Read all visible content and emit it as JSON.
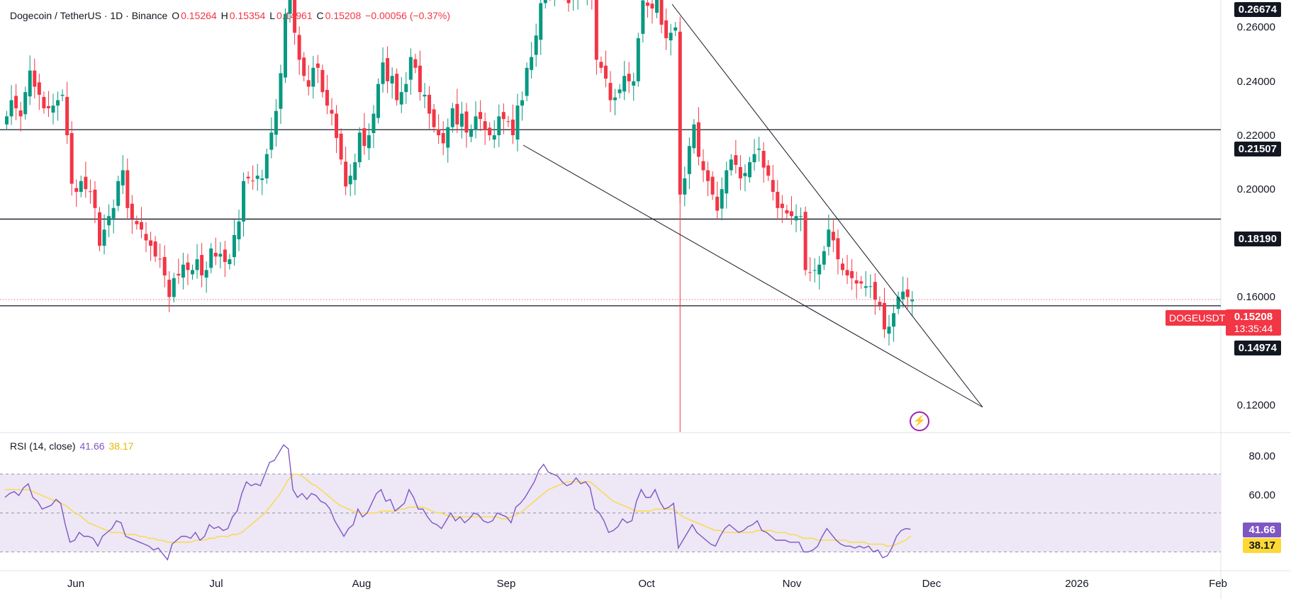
{
  "header": {
    "symbol": "Dogecoin / TetherUS · 1D · Binance",
    "o_label": "O",
    "o_val": "0.15264",
    "h_label": "H",
    "h_val": "0.15354",
    "l_label": "L",
    "l_val": "0.14961",
    "c_label": "C",
    "c_val": "0.15208",
    "change": "−0.00056 (−0.37%)"
  },
  "rsi_header": {
    "label": "RSI (14, close)",
    "rsi": "41.66",
    "ma": "38.17"
  },
  "price_axis": [
    "0.26000",
    "0.24000",
    "0.22000",
    "0.20000",
    "0.16000",
    "0.12000"
  ],
  "rsi_axis": [
    "80.00",
    "60.00"
  ],
  "level_labels": [
    "0.26674",
    "0.21507",
    "0.18190",
    "0.14974"
  ],
  "current": {
    "ticker": "DOGEUSDT",
    "price": "0.15208",
    "countdown": "13:35:44"
  },
  "rsi_values": {
    "rsi": "41.66",
    "ma": "38.17"
  },
  "time_axis": [
    "Jun",
    "Jul",
    "Aug",
    "Sep",
    "Oct",
    "Nov",
    "Dec",
    "2026",
    "Feb"
  ],
  "colors": {
    "up": "#089981",
    "down": "#f23645",
    "rsi": "#7e57c2",
    "rsi_ma": "#fdd835",
    "band": "#ede7f6"
  },
  "chart_data": {
    "type": "candlestick",
    "title": "Dogecoin / TetherUS · 1D · Binance",
    "ylim": [
      0.105,
      0.268
    ],
    "horizontal_levels": [
      0.26674,
      0.21507,
      0.1819,
      0.14974
    ],
    "last_price": 0.15208,
    "wedge_upper": [
      [
        "Oct 6",
        0.2667
      ],
      [
        "Dec 12",
        0.119
      ]
    ],
    "wedge_lower": [
      [
        "Sep 2",
        0.215
      ],
      [
        "Dec 12",
        0.119
      ]
    ],
    "close": [
      0.22,
      0.226,
      0.223,
      0.22,
      0.229,
      0.237,
      0.231,
      0.228,
      0.223,
      0.223,
      0.224,
      0.226,
      0.228,
      0.213,
      0.195,
      0.192,
      0.196,
      0.193,
      0.192,
      0.186,
      0.172,
      0.178,
      0.183,
      0.186,
      0.196,
      0.2,
      0.186,
      0.182,
      0.18,
      0.178,
      0.174,
      0.172,
      0.168,
      0.167,
      0.161,
      0.153,
      0.16,
      0.161,
      0.165,
      0.163,
      0.163,
      0.167,
      0.161,
      0.163,
      0.171,
      0.168,
      0.169,
      0.166,
      0.167,
      0.176,
      0.181,
      0.196,
      0.197,
      0.196,
      0.198,
      0.197,
      0.206,
      0.214,
      0.222,
      0.236,
      0.258,
      0.273,
      0.251,
      0.241,
      0.235,
      0.231,
      0.238,
      0.238,
      0.229,
      0.224,
      0.221,
      0.212,
      0.204,
      0.194,
      0.198,
      0.203,
      0.214,
      0.209,
      0.213,
      0.221,
      0.232,
      0.24,
      0.233,
      0.235,
      0.226,
      0.229,
      0.232,
      0.242,
      0.238,
      0.229,
      0.228,
      0.221,
      0.216,
      0.213,
      0.21,
      0.216,
      0.223,
      0.217,
      0.221,
      0.214,
      0.215,
      0.22,
      0.219,
      0.215,
      0.213,
      0.213,
      0.22,
      0.219,
      0.218,
      0.213,
      0.224,
      0.226,
      0.238,
      0.242,
      0.25,
      0.262,
      0.265,
      0.266,
      0.268,
      0.269,
      0.265,
      0.262,
      0.266,
      0.27,
      0.266,
      0.268,
      0.264,
      0.241,
      0.238,
      0.234,
      0.226,
      0.227,
      0.23,
      0.235,
      0.233,
      0.233,
      0.249,
      0.263,
      0.261,
      0.26,
      0.267,
      0.254,
      0.249,
      0.251,
      0.253,
      0.191,
      0.197,
      0.209,
      0.217,
      0.205,
      0.2,
      0.196,
      0.191,
      0.185,
      0.193,
      0.2,
      0.204,
      0.202,
      0.197,
      0.199,
      0.203,
      0.206,
      0.208,
      0.201,
      0.198,
      0.192,
      0.186,
      0.186,
      0.184,
      0.183,
      0.183,
      0.183,
      0.163,
      0.162,
      0.163,
      0.165,
      0.17,
      0.178,
      0.174,
      0.167,
      0.163,
      0.161,
      0.16,
      0.158,
      0.158,
      0.157,
      0.157,
      0.152,
      0.15,
      0.141,
      0.142,
      0.147,
      0.153,
      0.155,
      0.153,
      0.152
    ],
    "rsi": [
      58,
      60,
      61,
      59,
      63,
      65,
      58,
      56,
      52,
      53,
      54,
      57,
      55,
      44,
      35,
      36,
      40,
      38,
      38,
      37,
      33,
      38,
      40,
      42,
      46,
      45,
      38,
      37,
      36,
      35,
      34,
      33,
      31,
      32,
      29,
      26,
      34,
      36,
      38,
      38,
      37,
      40,
      36,
      38,
      44,
      42,
      43,
      41,
      42,
      48,
      51,
      60,
      66,
      64,
      65,
      64,
      70,
      76,
      77,
      81,
      85,
      83,
      62,
      58,
      60,
      57,
      60,
      59,
      56,
      55,
      52,
      46,
      42,
      38,
      42,
      44,
      52,
      48,
      50,
      55,
      60,
      62,
      56,
      57,
      51,
      53,
      55,
      62,
      58,
      52,
      52,
      48,
      45,
      44,
      42,
      46,
      50,
      46,
      48,
      45,
      47,
      50,
      49,
      46,
      45,
      46,
      50,
      49,
      48,
      45,
      53,
      55,
      58,
      62,
      66,
      72,
      75,
      71,
      70,
      69,
      66,
      64,
      65,
      68,
      65,
      66,
      63,
      52,
      50,
      46,
      40,
      41,
      43,
      47,
      45,
      46,
      56,
      62,
      58,
      58,
      62,
      56,
      52,
      53,
      55,
      32,
      36,
      40,
      44,
      40,
      38,
      36,
      34,
      33,
      38,
      42,
      44,
      42,
      40,
      41,
      43,
      44,
      46,
      41,
      40,
      38,
      36,
      36,
      36,
      35,
      35,
      35,
      30,
      30,
      31,
      33,
      38,
      42,
      39,
      36,
      34,
      33,
      33,
      32,
      33,
      32,
      33,
      30,
      31,
      27,
      28,
      32,
      38,
      41,
      42,
      41.66
    ],
    "rsi_ma": [
      62,
      62,
      62,
      62,
      62,
      62,
      61,
      60,
      59,
      58,
      57,
      56,
      55,
      54,
      52,
      50,
      49,
      47,
      45,
      44,
      43,
      42,
      41,
      40,
      40,
      40,
      39,
      39,
      39,
      38,
      38,
      37,
      37,
      36,
      36,
      35,
      35,
      35,
      35,
      35,
      35,
      36,
      36,
      36,
      37,
      37,
      38,
      38,
      38,
      39,
      39,
      40,
      42,
      44,
      46,
      48,
      50,
      53,
      56,
      59,
      63,
      67,
      70,
      70,
      69,
      67,
      65,
      64,
      62,
      60,
      58,
      56,
      54,
      53,
      52,
      51,
      50,
      50,
      50,
      50,
      50,
      51,
      51,
      51,
      51,
      52,
      52,
      53,
      53,
      53,
      53,
      52,
      51,
      50,
      50,
      49,
      48,
      48,
      48,
      48,
      48,
      48,
      48,
      48,
      48,
      48,
      48,
      47,
      47,
      48,
      49,
      50,
      52,
      54,
      56,
      58,
      60,
      62,
      63,
      64,
      65,
      66,
      66,
      66,
      66,
      66,
      66,
      64,
      62,
      60,
      58,
      56,
      55,
      54,
      53,
      52,
      51,
      51,
      51,
      51,
      52,
      52,
      52,
      52,
      52,
      50,
      48,
      47,
      46,
      45,
      44,
      43,
      42,
      41,
      41,
      40,
      40,
      40,
      40,
      40,
      40,
      40,
      41,
      41,
      41,
      41,
      40,
      40,
      40,
      39,
      39,
      38,
      37,
      37,
      37,
      36,
      36,
      36,
      36,
      36,
      36,
      36,
      35,
      35,
      35,
      35,
      34,
      34,
      34,
      34,
      33,
      33,
      34,
      35,
      36,
      38.17
    ]
  }
}
